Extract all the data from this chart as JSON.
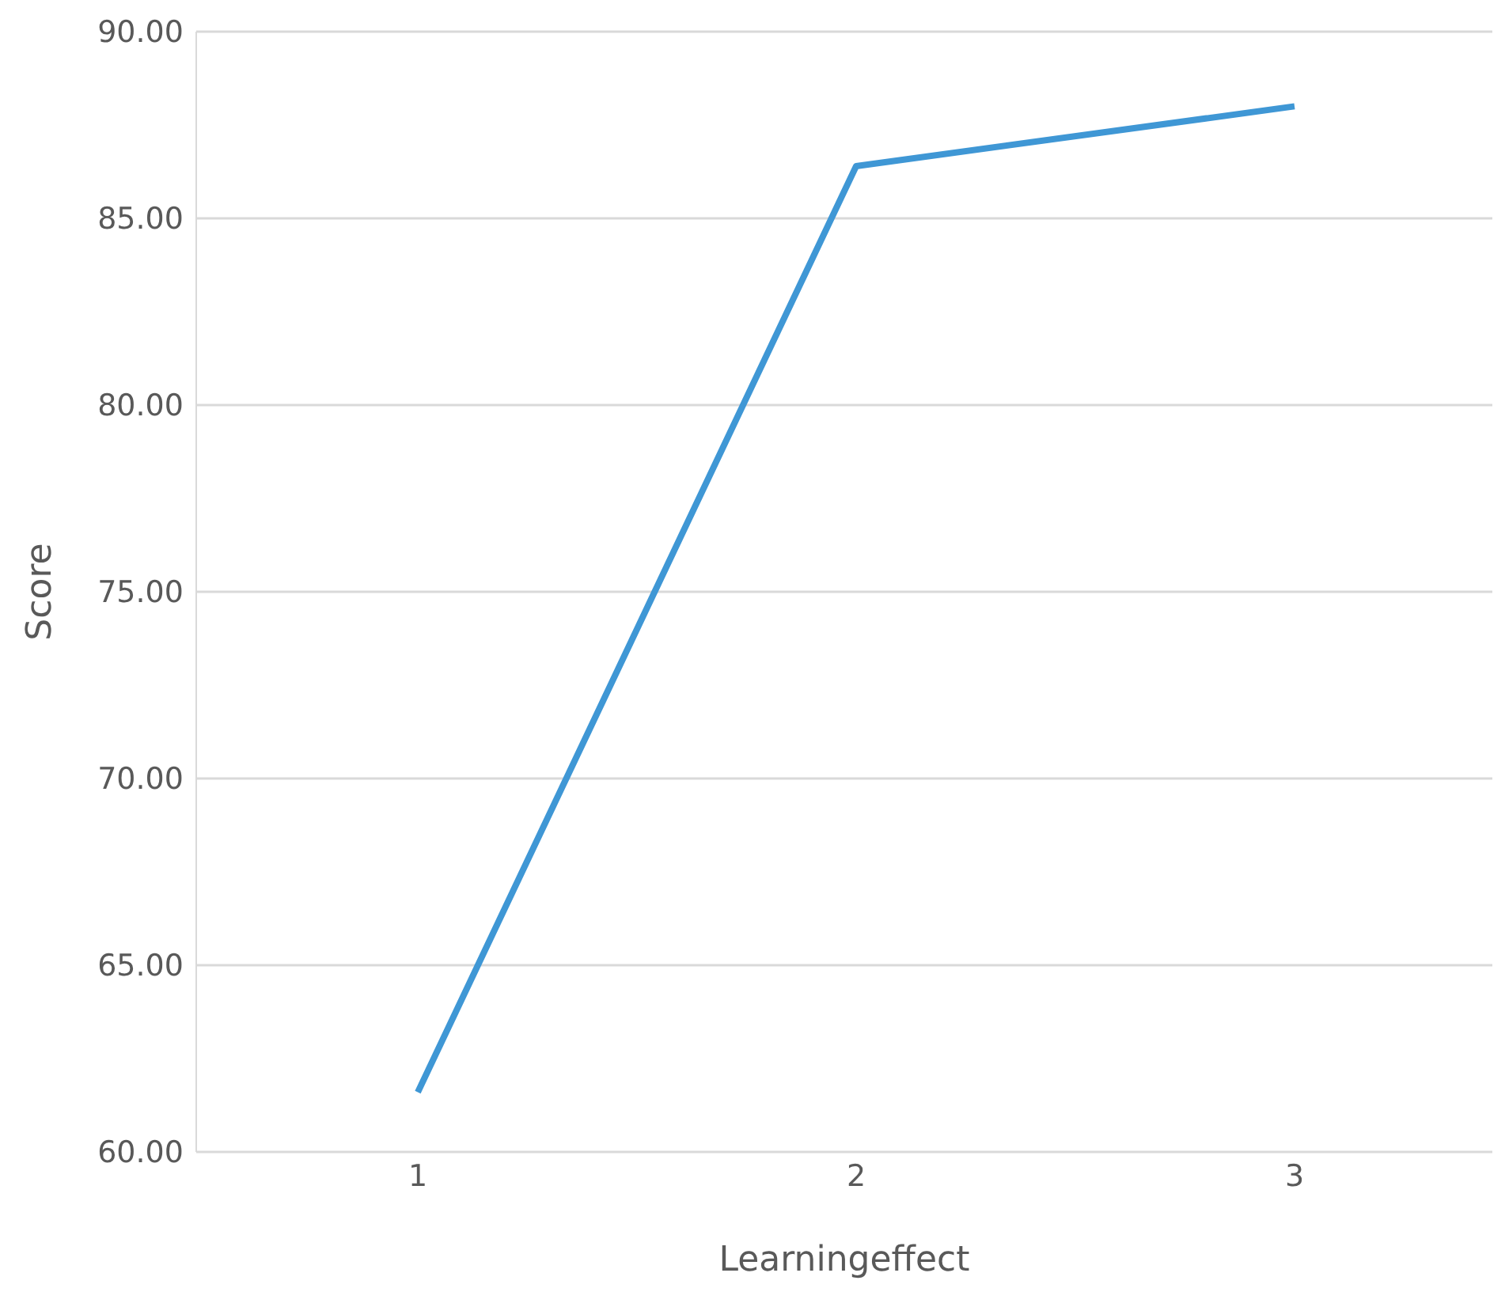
{
  "chart_data": {
    "type": "line",
    "xlabel": "Learningeffect",
    "ylabel": "Score",
    "categories": [
      "1",
      "2",
      "3"
    ],
    "series": [
      {
        "color": "#3f97d5",
        "values": [
          61.6,
          86.4,
          88.0
        ]
      }
    ],
    "ylim": [
      60,
      90
    ],
    "yticks": [
      {
        "value": 60,
        "label": "60.00"
      },
      {
        "value": 65,
        "label": "65.00"
      },
      {
        "value": 70,
        "label": "70.00"
      },
      {
        "value": 75,
        "label": "75.00"
      },
      {
        "value": 80,
        "label": "80.00"
      },
      {
        "value": 85,
        "label": "85.00"
      },
      {
        "value": 90,
        "label": "90.00"
      }
    ],
    "grid": "y",
    "legend": false,
    "marker": "none",
    "line_style": "solid"
  }
}
